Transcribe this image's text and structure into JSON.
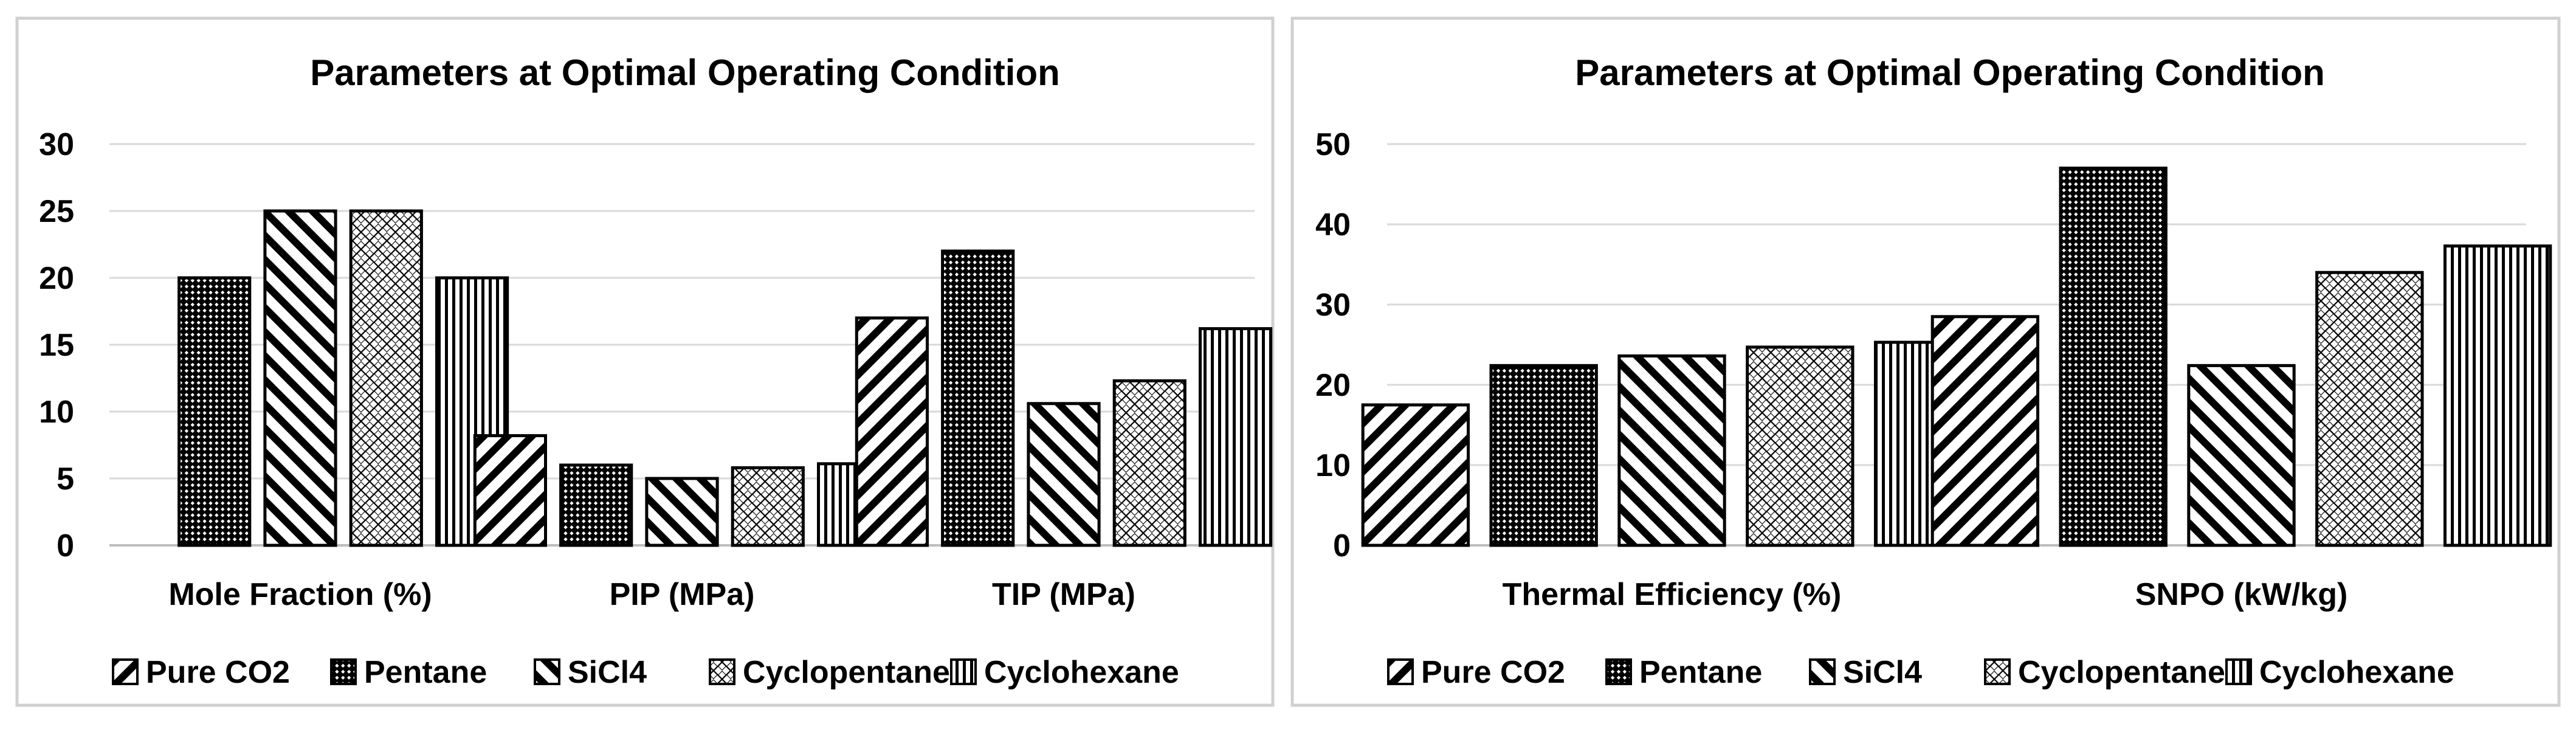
{
  "charts": [
    {
      "title": "Parameters at Optimal Operating Condition",
      "legend": [
        {
          "label": "Pure CO2",
          "pattern": "diag-down"
        },
        {
          "label": "Pentane",
          "pattern": "checker"
        },
        {
          "label": "SiCl4",
          "pattern": "diag-up"
        },
        {
          "label": "Cyclopentane",
          "pattern": "lattice"
        },
        {
          "label": "Cyclohexane",
          "pattern": "vertical"
        }
      ]
    },
    {
      "title": "Parameters at Optimal Operating Condition",
      "legend": [
        {
          "label": "Pure CO2",
          "pattern": "diag-down"
        },
        {
          "label": "Pentane",
          "pattern": "checker"
        },
        {
          "label": "SiCl4",
          "pattern": "diag-up"
        },
        {
          "label": "Cyclopentane",
          "pattern": "lattice"
        },
        {
          "label": "Cyclohexane",
          "pattern": "vertical"
        }
      ]
    }
  ],
  "chart_data": [
    {
      "type": "bar",
      "title": "Parameters at Optimal Operating Condition",
      "categories": [
        "Mole Fraction (%)",
        "PIP (MPa)",
        "TIP (MPa)"
      ],
      "series": [
        {
          "name": "Pure CO2",
          "values": [
            null,
            8.2,
            17
          ]
        },
        {
          "name": "Pentane",
          "values": [
            20,
            6,
            22
          ]
        },
        {
          "name": "SiCl4",
          "values": [
            25,
            5,
            10.6
          ]
        },
        {
          "name": "Cyclopentane",
          "values": [
            25,
            5.8,
            12.3
          ]
        },
        {
          "name": "Cyclohexane",
          "values": [
            20,
            6.1,
            16.2
          ]
        }
      ],
      "yticks": [
        "0",
        "5",
        "10",
        "15",
        "20",
        "25",
        "30"
      ],
      "ylim": [
        0,
        30
      ],
      "grid": true,
      "legend_position": "bottom"
    },
    {
      "type": "bar",
      "title": "Parameters at Optimal Operating Condition",
      "categories": [
        "Thermal Efficiency (%)",
        "SNPO (kW/kg)"
      ],
      "series": [
        {
          "name": "Pure CO2",
          "values": [
            17.5,
            28.5
          ]
        },
        {
          "name": "Pentane",
          "values": [
            22.4,
            47
          ]
        },
        {
          "name": "SiCl4",
          "values": [
            23.6,
            22.4
          ]
        },
        {
          "name": "Cyclopentane",
          "values": [
            24.7,
            34
          ]
        },
        {
          "name": "Cyclohexane",
          "values": [
            25.3,
            37.3
          ]
        }
      ],
      "yticks": [
        "0",
        "10",
        "20",
        "30",
        "40",
        "50"
      ],
      "ylim": [
        0,
        50
      ],
      "grid": true,
      "legend_position": "bottom"
    }
  ]
}
